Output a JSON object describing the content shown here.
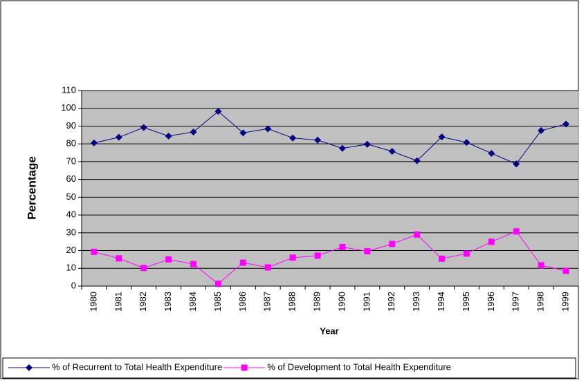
{
  "chart_data": {
    "type": "line",
    "x_label": "Year",
    "y_label": "Percentage",
    "categories": [
      "1980",
      "1981",
      "1982",
      "1983",
      "1984",
      "1985",
      "1986",
      "1987",
      "1988",
      "1989",
      "1990",
      "1991",
      "1992",
      "1993",
      "1994",
      "1995",
      "1996",
      "1997",
      "1998",
      "1999"
    ],
    "series": [
      {
        "name": "% of Recurrent to Total Health Expenditure",
        "color": "#000080",
        "marker": "diamond",
        "values": [
          80.5,
          83.7,
          89.2,
          84.4,
          86.7,
          98.3,
          86.2,
          88.5,
          83.3,
          82.1,
          77.5,
          79.8,
          75.8,
          70.5,
          83.9,
          80.8,
          74.7,
          68.7,
          87.5,
          91.1
        ]
      },
      {
        "name": "% of Development to Total Health Expenditure",
        "color": "#ff00ff",
        "marker": "square",
        "values": [
          19.3,
          15.6,
          10.2,
          15.0,
          12.4,
          1.3,
          13.2,
          10.5,
          16.0,
          17.1,
          22.0,
          19.6,
          23.7,
          29.0,
          15.4,
          18.3,
          24.9,
          30.8,
          11.7,
          8.6
        ]
      }
    ],
    "ylim": [
      0,
      110
    ],
    "yticks": [
      0,
      10,
      20,
      30,
      40,
      50,
      60,
      70,
      80,
      90,
      100,
      110
    ],
    "grid": true,
    "plot_background": "#c0c0c0",
    "legend": "bottom"
  }
}
